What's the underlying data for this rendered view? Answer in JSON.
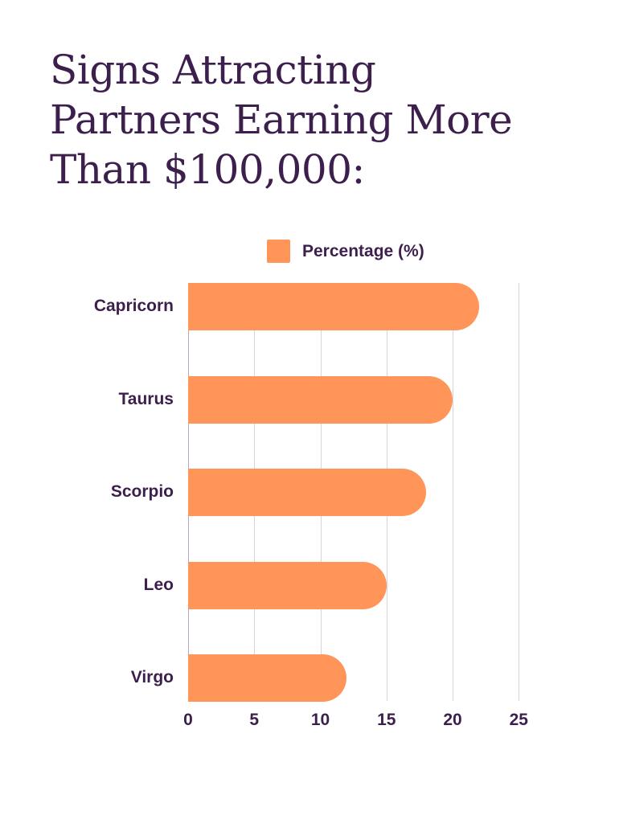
{
  "title": "Signs Attracting Partners Earning More Than $100,000:",
  "legend": {
    "label": "Percentage (%)",
    "color": "#ff9558"
  },
  "colors": {
    "bar": "#ff9558",
    "text": "#3d1f4e",
    "grid": "#d9d2e0"
  },
  "chart_data": {
    "type": "bar",
    "orientation": "horizontal",
    "title": "Signs Attracting Partners Earning More Than $100,000:",
    "categories": [
      "Capricorn",
      "Taurus",
      "Scorpio",
      "Leo",
      "Virgo"
    ],
    "series": [
      {
        "name": "Percentage (%)",
        "values": [
          22,
          20,
          18,
          15,
          12
        ]
      }
    ],
    "xlabel": "",
    "ylabel": "",
    "xlim": [
      0,
      25
    ],
    "xticks": [
      "0",
      "5",
      "10",
      "15",
      "20",
      "25"
    ],
    "grid": true,
    "legend_position": "top"
  }
}
